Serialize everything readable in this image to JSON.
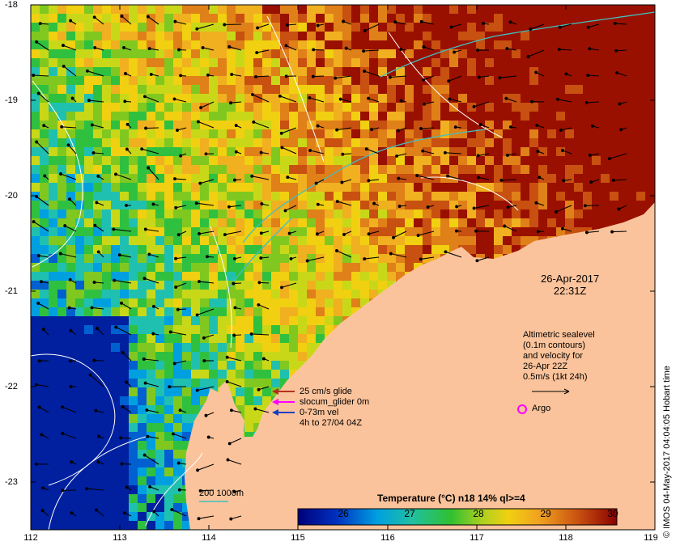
{
  "map": {
    "lon_ticks": [
      "112",
      "113",
      "114",
      "115",
      "116",
      "117",
      "118",
      "119"
    ],
    "lat_ticks": [
      "-18",
      "-19",
      "-20",
      "-21",
      "-22",
      "-23"
    ],
    "date": "26-Apr-2017",
    "time": "22:31Z",
    "legend_glider": {
      "line1": "25 cm/s glide",
      "line2": "slocum_glider 0m",
      "line3": "0-73m vel",
      "line4": "4h to 27/04 04Z",
      "colors": {
        "glide": "#b03020",
        "slocum": "#ff00ff",
        "vel": "#1040c0"
      }
    },
    "altimetry": {
      "line1": "Altimetric sealevel",
      "line2": "(0.1m contours)",
      "line3": "and velocity for",
      "line4": "26-Apr 22Z",
      "line5": "0.5m/s (1kt 24h)"
    },
    "argo_label": "Argo",
    "argo_color": "#ff00ff",
    "isobath_label": "200  1000m",
    "isobath_color": "#40c0c0",
    "land_color": "#fbc39b"
  },
  "colorbar": {
    "title": "Temperature (°C) n18 14% ql>=4",
    "ticks": [
      "26",
      "27",
      "28",
      "29",
      "30"
    ],
    "range": [
      25.5,
      30.3
    ]
  },
  "copyright": "© IMOS 04-May-2017 04:04:05 Hobart time"
}
